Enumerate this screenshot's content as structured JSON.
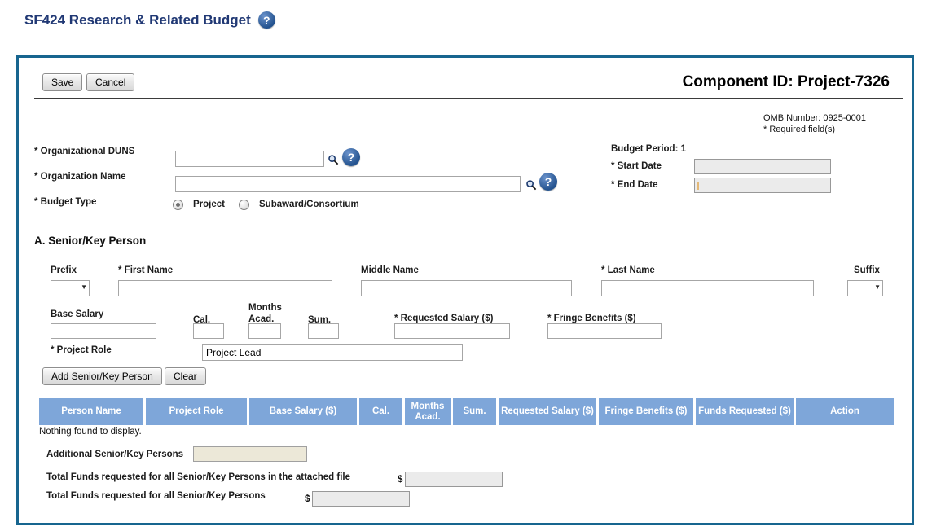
{
  "title": {
    "text": "SF424 Research & Related Budget"
  },
  "icons": {
    "help_glyph": "?",
    "dropdown_arrow": "▼",
    "search": "magnifier"
  },
  "toolbar": {
    "save": "Save",
    "cancel": "Cancel"
  },
  "header": {
    "component_id": "Component ID: Project-7326",
    "omb_number": "OMB Number: 0925-0001",
    "required_note": "* Required field(s)"
  },
  "org_section": {
    "duns_label": "* Organizational DUNS",
    "duns_value": "",
    "org_name_label": "* Organization Name",
    "org_name_value": "",
    "budget_type_label": "* Budget Type",
    "budget_type_options": [
      {
        "label": "Project",
        "selected": true
      },
      {
        "label": "Subaward/Consortium",
        "selected": false
      }
    ],
    "budget_period_label": "Budget Period: 1",
    "start_date_label": "* Start Date",
    "start_date_value": "",
    "end_date_label": "* End Date",
    "end_date_value": ""
  },
  "section_a": {
    "heading": "A. Senior/Key Person",
    "prefix_label": "Prefix",
    "first_name_label": "* First Name",
    "middle_name_label": "Middle Name",
    "last_name_label": "* Last Name",
    "suffix_label": "Suffix",
    "base_salary_label": "Base Salary",
    "cal_label": "Cal.",
    "months_label": "Months",
    "acad_label": "Acad.",
    "sum_label": "Sum.",
    "requested_salary_label": "* Requested Salary ($)",
    "fringe_benefits_label": "* Fringe Benefits ($)",
    "project_role_label": "* Project Role",
    "project_role_value": "Project Lead",
    "add_button": "Add Senior/Key Person",
    "clear_button": "Clear",
    "table": {
      "columns": [
        "Person Name",
        "Project Role",
        "Base Salary ($)",
        "Cal.",
        "Months Acad.",
        "Sum.",
        "Requested Salary ($)",
        "Fringe Benefits ($)",
        "Funds Requested ($)",
        "Action"
      ],
      "rows": [],
      "empty_text": "Nothing found to display."
    },
    "totals": {
      "additional_label": "Additional Senior/Key Persons",
      "additional_value": "",
      "attached_total_label": "Total Funds requested for all Senior/Key Persons in the attached file",
      "attached_total_value": "",
      "overall_total_label": "Total Funds requested for all Senior/Key Persons",
      "overall_total_value": "",
      "currency_symbol": "$"
    }
  },
  "colors": {
    "title": "#203874",
    "panel_border": "#17658f",
    "table_header_bg": "#7ea6d9",
    "table_header_text": "#ffffff",
    "help_icon_bg": "#2d5c9e",
    "additional_field_bg": "#ece8d8",
    "disabled_field_bg": "#ebebeb"
  }
}
